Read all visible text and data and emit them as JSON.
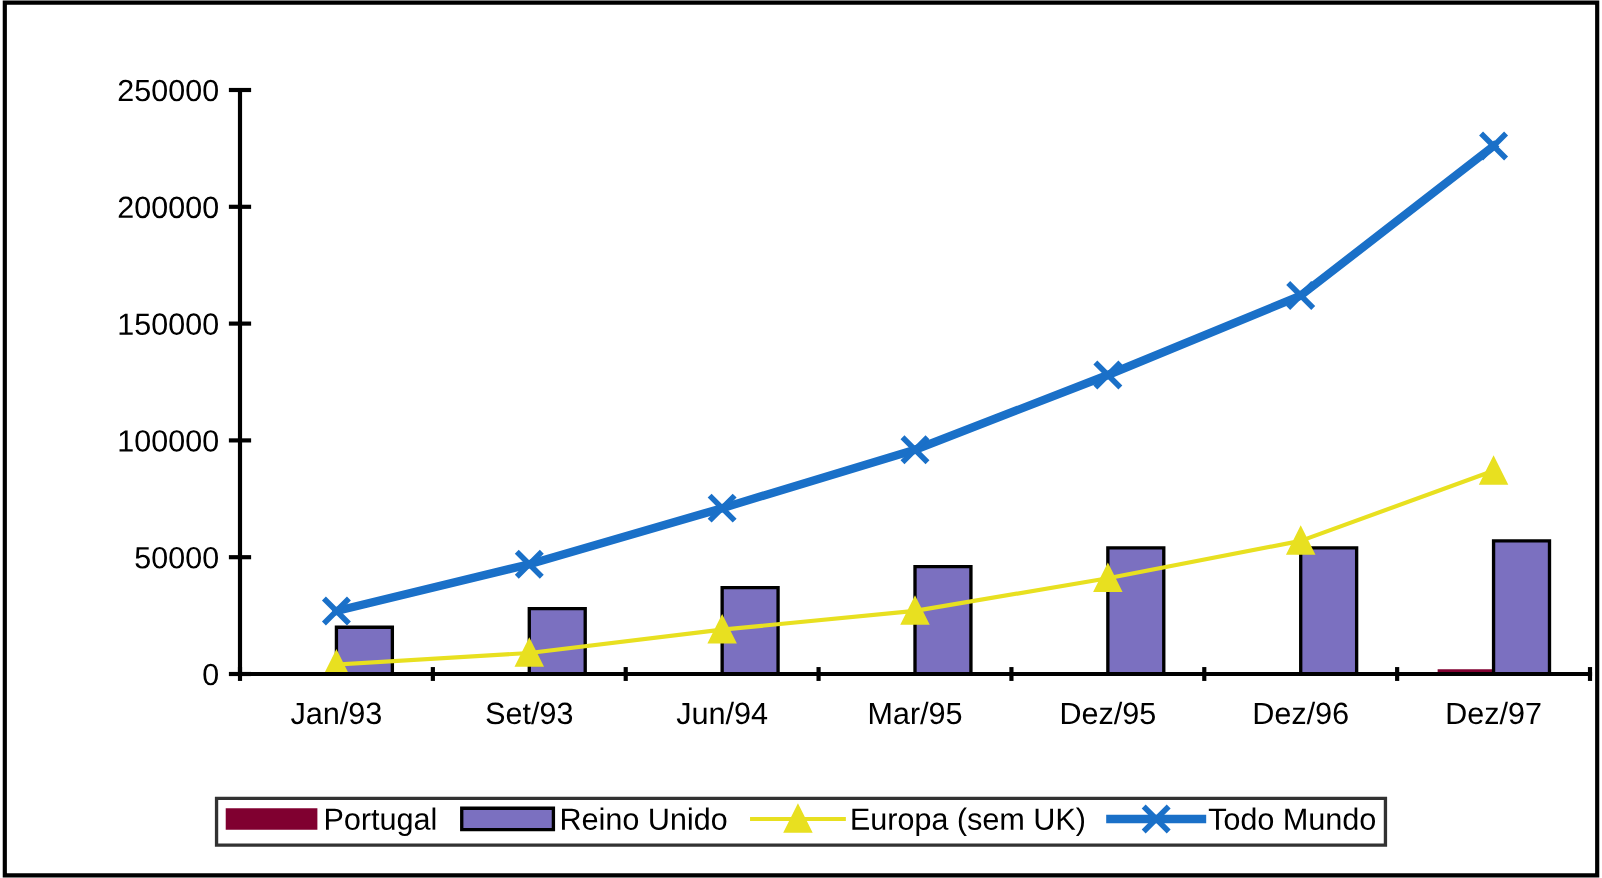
{
  "chart_data": {
    "type": "bar",
    "categories": [
      "Jan/93",
      "Set/93",
      "Jun/94",
      "Mar/95",
      "Dez/95",
      "Dez/96",
      "Dez/97"
    ],
    "series": [
      {
        "name": "Portugal",
        "color": "#800030",
        "values": [
          null,
          null,
          null,
          null,
          null,
          null,
          2000
        ]
      },
      {
        "name": "Reino Unido",
        "color": "#7b70c0",
        "values": [
          20000,
          28000,
          37000,
          46000,
          54000,
          54000,
          57000
        ]
      },
      {
        "name": "Europa (sem UK)",
        "type": "line",
        "color": "#e8e020",
        "marker": "triangle",
        "values": [
          4000,
          9000,
          19000,
          27000,
          41000,
          57000,
          87000
        ]
      },
      {
        "name": "Todo Mundo",
        "type": "line",
        "color": "#1a70c8",
        "marker": "cross",
        "values": [
          27000,
          47000,
          71000,
          96000,
          128000,
          162000,
          226000
        ]
      }
    ],
    "ylim": [
      0,
      250000
    ],
    "yticks": [
      0,
      50000,
      100000,
      150000,
      200000,
      250000
    ],
    "grid": false,
    "legend": "bottom"
  }
}
